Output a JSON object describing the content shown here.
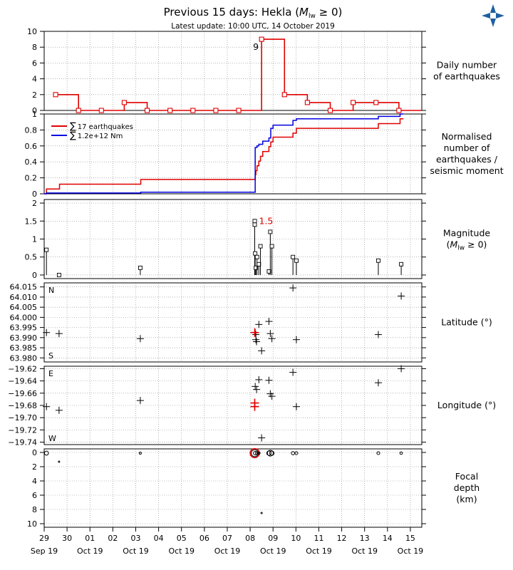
{
  "header": {
    "title_prefix": "Previous 15 days: Hekla (",
    "title_sym": "M",
    "title_sub": "lw",
    "title_suffix": " ≥ 0)",
    "subtitle": "Latest update: 10:00 UTC, 14 October 2019",
    "logo_icon": "imo-logo-icon",
    "logo_color": "#1f5fa0"
  },
  "colors": {
    "count": "#e00000",
    "moment": "#0000e0",
    "marker": "#000000"
  },
  "x_axis": {
    "range": [
      29.0,
      45.5
    ],
    "day_ticks": [
      29,
      30,
      31,
      32,
      33,
      34,
      35,
      36,
      37,
      38,
      39,
      40,
      41,
      42,
      43,
      44,
      45
    ],
    "day_labels": [
      "29",
      "30",
      "01",
      "02",
      "03",
      "04",
      "05",
      "06",
      "07",
      "08",
      "09",
      "10",
      "11",
      "12",
      "13",
      "14",
      "15"
    ],
    "month_labels": [
      "Sep 19",
      "Oct 19",
      "Oct 19",
      "Oct 19",
      "Oct 19",
      "Oct 19",
      "Oct 19",
      "Oct 19",
      "Oct 19"
    ]
  },
  "chart_data": [
    {
      "type": "step",
      "label_lines": [
        "Daily number",
        "of earthquakes"
      ],
      "ylim": [
        0,
        10
      ],
      "yticks": [
        0,
        2,
        4,
        6,
        8,
        10
      ],
      "peak_label": "9",
      "points": [
        {
          "x": 29.5,
          "y": 2
        },
        {
          "x": 30.5,
          "y": 0
        },
        {
          "x": 31.5,
          "y": 0
        },
        {
          "x": 32.5,
          "y": 1
        },
        {
          "x": 33.5,
          "y": 0
        },
        {
          "x": 34.5,
          "y": 0
        },
        {
          "x": 35.5,
          "y": 0
        },
        {
          "x": 36.5,
          "y": 0
        },
        {
          "x": 37.5,
          "y": 0
        },
        {
          "x": 38.5,
          "y": 9
        },
        {
          "x": 39.5,
          "y": 2
        },
        {
          "x": 40.5,
          "y": 1
        },
        {
          "x": 41.5,
          "y": 0
        },
        {
          "x": 42.5,
          "y": 1
        },
        {
          "x": 43.5,
          "y": 1
        },
        {
          "x": 44.5,
          "y": 0
        }
      ]
    },
    {
      "type": "line",
      "label_lines": [
        "Normalised",
        "number of",
        "earthquakes /",
        "seismic moment"
      ],
      "ylim": [
        0,
        1
      ],
      "yticks": [
        0,
        0.2,
        0.4,
        0.6,
        0.8,
        1.0
      ],
      "legend": [
        {
          "sym": "∑",
          "text": "17 earthquakes",
          "color": "#e00000"
        },
        {
          "sym": "∑",
          "text": "1.2e+12 Nm",
          "color": "#0000e0"
        }
      ],
      "series": [
        {
          "name": "17 earthquakes",
          "color": "#e00000",
          "steps": [
            [
              29.0,
              0
            ],
            [
              29.1,
              0.06
            ],
            [
              29.65,
              0.06
            ],
            [
              29.67,
              0.12
            ],
            [
              33.2,
              0.12
            ],
            [
              33.22,
              0.18
            ],
            [
              38.2,
              0.18
            ],
            [
              38.22,
              0.24
            ],
            [
              38.25,
              0.29
            ],
            [
              38.3,
              0.35
            ],
            [
              38.38,
              0.41
            ],
            [
              38.45,
              0.47
            ],
            [
              38.55,
              0.53
            ],
            [
              38.82,
              0.59
            ],
            [
              38.9,
              0.65
            ],
            [
              39.0,
              0.71
            ],
            [
              39.87,
              0.76
            ],
            [
              40.02,
              0.82
            ],
            [
              43.6,
              0.88
            ],
            [
              44.55,
              0.94
            ],
            [
              44.7,
              0.94
            ]
          ]
        },
        {
          "name": "1.2e+12 Nm",
          "color": "#0000e0",
          "steps": [
            [
              29.0,
              0
            ],
            [
              29.1,
              0.01
            ],
            [
              33.2,
              0.01
            ],
            [
              33.22,
              0.02
            ],
            [
              38.2,
              0.02
            ],
            [
              38.22,
              0.58
            ],
            [
              38.3,
              0.6
            ],
            [
              38.38,
              0.62
            ],
            [
              38.55,
              0.66
            ],
            [
              38.82,
              0.7
            ],
            [
              38.9,
              0.82
            ],
            [
              39.0,
              0.86
            ],
            [
              39.87,
              0.92
            ],
            [
              40.02,
              0.94
            ],
            [
              43.6,
              0.97
            ],
            [
              44.55,
              1.0
            ],
            [
              44.7,
              1.0
            ]
          ]
        }
      ]
    },
    {
      "type": "stem",
      "label_lines": [
        "Magnitude",
        "(M"
      ],
      "label_sub": "lw",
      "label_tail": " ≥ 0)",
      "ylim": [
        -0.1,
        2.1
      ],
      "yticks": [
        0,
        0.5,
        1.0,
        1.5,
        2.0
      ],
      "max_label": "1.5",
      "points": [
        {
          "x": 29.1,
          "y": 0.7
        },
        {
          "x": 29.65,
          "y": 0.0
        },
        {
          "x": 33.2,
          "y": 0.2
        },
        {
          "x": 38.2,
          "y": 1.5
        },
        {
          "x": 38.2,
          "y": 1.4
        },
        {
          "x": 38.22,
          "y": 0.6
        },
        {
          "x": 38.25,
          "y": 0.2
        },
        {
          "x": 38.3,
          "y": 0.5
        },
        {
          "x": 38.38,
          "y": 0.3
        },
        {
          "x": 38.45,
          "y": 0.8
        },
        {
          "x": 38.82,
          "y": 0.1
        },
        {
          "x": 38.88,
          "y": 1.2
        },
        {
          "x": 38.95,
          "y": 0.8
        },
        {
          "x": 39.87,
          "y": 0.5
        },
        {
          "x": 40.02,
          "y": 0.4
        },
        {
          "x": 43.6,
          "y": 0.4
        },
        {
          "x": 44.6,
          "y": 0.3
        }
      ]
    },
    {
      "type": "scatter",
      "label_lines": [
        "Latitude (°)"
      ],
      "ylim": [
        63.978,
        64.017
      ],
      "yticks": [
        63.98,
        63.985,
        63.99,
        63.995,
        64.0,
        64.005,
        64.01,
        64.015
      ],
      "tick_labels": [
        "63.980",
        "63.985",
        "63.990",
        "63.995",
        "64.000",
        "64.005",
        "64.010",
        "64.015"
      ],
      "corner_top": "N",
      "corner_bottom": "S",
      "points": [
        {
          "x": 29.1,
          "y": 63.9925
        },
        {
          "x": 29.65,
          "y": 63.992
        },
        {
          "x": 33.2,
          "y": 63.9895
        },
        {
          "x": 38.2,
          "y": 63.9925,
          "red": true
        },
        {
          "x": 38.22,
          "y": 63.9925
        },
        {
          "x": 38.25,
          "y": 63.9915
        },
        {
          "x": 38.25,
          "y": 63.989
        },
        {
          "x": 38.28,
          "y": 63.988
        },
        {
          "x": 38.38,
          "y": 63.9965
        },
        {
          "x": 38.5,
          "y": 63.9835
        },
        {
          "x": 38.82,
          "y": 63.998
        },
        {
          "x": 38.88,
          "y": 63.992
        },
        {
          "x": 38.95,
          "y": 63.9895
        },
        {
          "x": 39.87,
          "y": 64.0145
        },
        {
          "x": 40.02,
          "y": 63.989
        },
        {
          "x": 43.6,
          "y": 63.9915
        },
        {
          "x": 44.6,
          "y": 64.0105
        }
      ]
    },
    {
      "type": "scatter",
      "label_lines": [
        "Longitude (°)"
      ],
      "ylim": [
        -19.744,
        -19.616
      ],
      "yticks": [
        -19.74,
        -19.72,
        -19.7,
        -19.68,
        -19.66,
        -19.64,
        -19.62
      ],
      "tick_labels": [
        "−19.74",
        "−19.72",
        "−19.70",
        "−19.68",
        "−19.66",
        "−19.64",
        "−19.62"
      ],
      "corner_top": "E",
      "corner_bottom": "W",
      "points": [
        {
          "x": 29.1,
          "y": -19.682
        },
        {
          "x": 29.65,
          "y": -19.688
        },
        {
          "x": 33.2,
          "y": -19.672
        },
        {
          "x": 38.2,
          "y": -19.682,
          "red": true
        },
        {
          "x": 38.2,
          "y": -19.676,
          "red": true
        },
        {
          "x": 38.22,
          "y": -19.649
        },
        {
          "x": 38.28,
          "y": -19.654
        },
        {
          "x": 38.38,
          "y": -19.638
        },
        {
          "x": 38.5,
          "y": -19.733
        },
        {
          "x": 38.82,
          "y": -19.639
        },
        {
          "x": 38.88,
          "y": -19.661
        },
        {
          "x": 38.95,
          "y": -19.665
        },
        {
          "x": 39.87,
          "y": -19.626
        },
        {
          "x": 40.02,
          "y": -19.682
        },
        {
          "x": 43.6,
          "y": -19.643
        },
        {
          "x": 44.6,
          "y": -19.62
        }
      ]
    },
    {
      "type": "bubble",
      "label_lines": [
        "Focal",
        "depth",
        "(km)"
      ],
      "ylim": [
        10.5,
        -0.5
      ],
      "yticks": [
        0,
        2,
        4,
        6,
        8,
        10
      ],
      "points": [
        {
          "x": 29.1,
          "y": 0.1,
          "m": 0.7
        },
        {
          "x": 29.65,
          "y": 1.3,
          "m": 0.0
        },
        {
          "x": 33.2,
          "y": 0.1,
          "m": 0.2
        },
        {
          "x": 38.2,
          "y": 0.1,
          "m": 1.5,
          "red": true
        },
        {
          "x": 38.22,
          "y": 0.1,
          "m": 0.6
        },
        {
          "x": 38.3,
          "y": 0.1,
          "m": 0.5
        },
        {
          "x": 38.38,
          "y": 0.1,
          "m": 0.3
        },
        {
          "x": 38.5,
          "y": 8.5,
          "m": 0.0
        },
        {
          "x": 38.82,
          "y": 0.1,
          "m": 0.8
        },
        {
          "x": 38.88,
          "y": 0.1,
          "m": 1.2
        },
        {
          "x": 38.95,
          "y": 0.1,
          "m": 0.8
        },
        {
          "x": 39.87,
          "y": 0.1,
          "m": 0.5
        },
        {
          "x": 40.02,
          "y": 0.1,
          "m": 0.4
        },
        {
          "x": 43.6,
          "y": 0.1,
          "m": 0.4
        },
        {
          "x": 44.6,
          "y": 0.1,
          "m": 0.3
        }
      ]
    }
  ]
}
